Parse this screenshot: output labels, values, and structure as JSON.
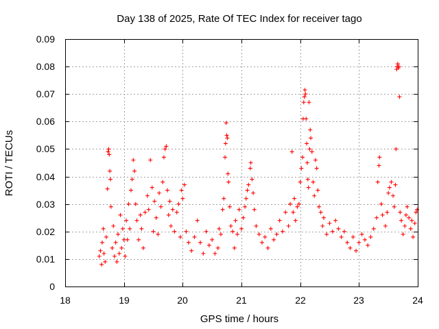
{
  "chart_data": {
    "type": "scatter",
    "title": "Day 138 of 2025, Rate Of TEC Index for receiver tago",
    "xlabel": "GPS time / hours",
    "ylabel": "ROTI / TECUs",
    "xlim": [
      18,
      24
    ],
    "ylim": [
      0,
      0.09
    ],
    "xticks": [
      18,
      19,
      20,
      21,
      22,
      23,
      24
    ],
    "yticks": [
      0,
      0.01,
      0.02,
      0.03,
      0.04,
      0.05,
      0.06,
      0.07,
      0.08,
      0.09
    ],
    "xtick_labels": [
      "18",
      "19",
      "20",
      "21",
      "22",
      "23",
      "24"
    ],
    "ytick_labels": [
      "0",
      "0.01",
      "0.02",
      "0.03",
      "0.04",
      "0.05",
      "0.06",
      "0.07",
      "0.08",
      "0.09"
    ],
    "grid": true,
    "marker": "+",
    "color": "#ff0000",
    "series": [
      {
        "name": "tago",
        "points": [
          [
            18.58,
            0.011
          ],
          [
            18.6,
            0.013
          ],
          [
            18.62,
            0.008
          ],
          [
            18.63,
            0.016
          ],
          [
            18.65,
            0.021
          ],
          [
            18.66,
            0.012
          ],
          [
            18.68,
            0.009
          ],
          [
            18.7,
            0.018
          ],
          [
            18.72,
            0.0355
          ],
          [
            18.73,
            0.049
          ],
          [
            18.74,
            0.05
          ],
          [
            18.75,
            0.048
          ],
          [
            18.76,
            0.042
          ],
          [
            18.77,
            0.039
          ],
          [
            18.78,
            0.029
          ],
          [
            18.8,
            0.014
          ],
          [
            18.82,
            0.022
          ],
          [
            18.84,
            0.011
          ],
          [
            18.86,
            0.016
          ],
          [
            18.88,
            0.009
          ],
          [
            18.9,
            0.019
          ],
          [
            18.92,
            0.012
          ],
          [
            18.94,
            0.026
          ],
          [
            18.96,
            0.014
          ],
          [
            18.98,
            0.021
          ],
          [
            19.0,
            0.017
          ],
          [
            19.02,
            0.011
          ],
          [
            19.04,
            0.024
          ],
          [
            19.06,
            0.017
          ],
          [
            19.08,
            0.03
          ],
          [
            19.1,
            0.021
          ],
          [
            19.12,
            0.035
          ],
          [
            19.14,
            0.039
          ],
          [
            19.16,
            0.046
          ],
          [
            19.18,
            0.042
          ],
          [
            19.2,
            0.03
          ],
          [
            19.22,
            0.024
          ],
          [
            19.25,
            0.017
          ],
          [
            19.28,
            0.026
          ],
          [
            19.3,
            0.021
          ],
          [
            19.33,
            0.014
          ],
          [
            19.36,
            0.027
          ],
          [
            19.4,
            0.033
          ],
          [
            19.42,
            0.028
          ],
          [
            19.45,
            0.046
          ],
          [
            19.48,
            0.036
          ],
          [
            19.5,
            0.02
          ],
          [
            19.52,
            0.031
          ],
          [
            19.55,
            0.025
          ],
          [
            19.58,
            0.019
          ],
          [
            19.6,
            0.034
          ],
          [
            19.63,
            0.029
          ],
          [
            19.66,
            0.038
          ],
          [
            19.68,
            0.047
          ],
          [
            19.7,
            0.05
          ],
          [
            19.72,
            0.051
          ],
          [
            19.74,
            0.035
          ],
          [
            19.76,
            0.026
          ],
          [
            19.78,
            0.031
          ],
          [
            19.8,
            0.022
          ],
          [
            19.83,
            0.028
          ],
          [
            19.86,
            0.02
          ],
          [
            19.9,
            0.027
          ],
          [
            19.93,
            0.03
          ],
          [
            19.96,
            0.018
          ],
          [
            19.98,
            0.035
          ],
          [
            20.0,
            0.032
          ],
          [
            20.03,
            0.037
          ],
          [
            20.06,
            0.02
          ],
          [
            20.1,
            0.016
          ],
          [
            20.15,
            0.013
          ],
          [
            20.2,
            0.018
          ],
          [
            20.25,
            0.024
          ],
          [
            20.3,
            0.016
          ],
          [
            20.35,
            0.012
          ],
          [
            20.4,
            0.02
          ],
          [
            20.45,
            0.015
          ],
          [
            20.5,
            0.017
          ],
          [
            20.55,
            0.012
          ],
          [
            20.6,
            0.014
          ],
          [
            20.62,
            0.021
          ],
          [
            20.65,
            0.019
          ],
          [
            20.68,
            0.028
          ],
          [
            20.7,
            0.032
          ],
          [
            20.72,
            0.047
          ],
          [
            20.73,
            0.052
          ],
          [
            20.74,
            0.0595
          ],
          [
            20.75,
            0.055
          ],
          [
            20.76,
            0.054
          ],
          [
            20.77,
            0.041
          ],
          [
            20.78,
            0.038
          ],
          [
            20.8,
            0.029
          ],
          [
            20.82,
            0.022
          ],
          [
            20.85,
            0.02
          ],
          [
            20.88,
            0.014
          ],
          [
            20.9,
            0.024
          ],
          [
            20.93,
            0.019
          ],
          [
            20.96,
            0.028
          ],
          [
            21.0,
            0.021
          ],
          [
            21.03,
            0.025
          ],
          [
            21.06,
            0.029
          ],
          [
            21.08,
            0.032
          ],
          [
            21.1,
            0.035
          ],
          [
            21.12,
            0.037
          ],
          [
            21.15,
            0.043
          ],
          [
            21.16,
            0.045
          ],
          [
            21.18,
            0.039
          ],
          [
            21.2,
            0.034
          ],
          [
            21.22,
            0.028
          ],
          [
            21.25,
            0.022
          ],
          [
            21.3,
            0.019
          ],
          [
            21.35,
            0.016
          ],
          [
            21.4,
            0.018
          ],
          [
            21.45,
            0.014
          ],
          [
            21.5,
            0.021
          ],
          [
            21.55,
            0.017
          ],
          [
            21.6,
            0.019
          ],
          [
            21.65,
            0.024
          ],
          [
            21.7,
            0.02
          ],
          [
            21.75,
            0.027
          ],
          [
            21.8,
            0.022
          ],
          [
            21.83,
            0.03
          ],
          [
            21.86,
            0.049
          ],
          [
            21.88,
            0.027
          ],
          [
            21.9,
            0.032
          ],
          [
            21.92,
            0.024
          ],
          [
            21.95,
            0.029
          ],
          [
            21.98,
            0.03
          ],
          [
            22.0,
            0.038
          ],
          [
            22.02,
            0.043
          ],
          [
            22.04,
            0.047
          ],
          [
            22.05,
            0.061
          ],
          [
            22.06,
            0.067
          ],
          [
            22.07,
            0.069
          ],
          [
            22.08,
            0.0715
          ],
          [
            22.09,
            0.07
          ],
          [
            22.1,
            0.061
          ],
          [
            22.11,
            0.052
          ],
          [
            22.12,
            0.045
          ],
          [
            22.13,
            0.039
          ],
          [
            22.14,
            0.036
          ],
          [
            22.15,
            0.067
          ],
          [
            22.16,
            0.05
          ],
          [
            22.17,
            0.057
          ],
          [
            22.18,
            0.054
          ],
          [
            22.2,
            0.049
          ],
          [
            22.22,
            0.038
          ],
          [
            22.24,
            0.033
          ],
          [
            22.26,
            0.046
          ],
          [
            22.28,
            0.043
          ],
          [
            22.3,
            0.035
          ],
          [
            22.32,
            0.029
          ],
          [
            22.35,
            0.027
          ],
          [
            22.38,
            0.022
          ],
          [
            22.4,
            0.025
          ],
          [
            22.45,
            0.019
          ],
          [
            22.5,
            0.023
          ],
          [
            22.55,
            0.02
          ],
          [
            22.6,
            0.024
          ],
          [
            22.65,
            0.021
          ],
          [
            22.7,
            0.018
          ],
          [
            22.75,
            0.02
          ],
          [
            22.8,
            0.016
          ],
          [
            22.85,
            0.014
          ],
          [
            22.9,
            0.018
          ],
          [
            22.95,
            0.013
          ],
          [
            23.0,
            0.016
          ],
          [
            23.05,
            0.019
          ],
          [
            23.1,
            0.017
          ],
          [
            23.15,
            0.015
          ],
          [
            23.2,
            0.018
          ],
          [
            23.25,
            0.021
          ],
          [
            23.3,
            0.025
          ],
          [
            23.32,
            0.038
          ],
          [
            23.34,
            0.044
          ],
          [
            23.35,
            0.047
          ],
          [
            23.38,
            0.03
          ],
          [
            23.4,
            0.026
          ],
          [
            23.45,
            0.022
          ],
          [
            23.48,
            0.027
          ],
          [
            23.5,
            0.034
          ],
          [
            23.52,
            0.036
          ],
          [
            23.55,
            0.038
          ],
          [
            23.58,
            0.033
          ],
          [
            23.6,
            0.029
          ],
          [
            23.62,
            0.037
          ],
          [
            23.63,
            0.05
          ],
          [
            23.64,
            0.079
          ],
          [
            23.65,
            0.08
          ],
          [
            23.66,
            0.081
          ],
          [
            23.67,
            0.0795
          ],
          [
            23.68,
            0.08
          ],
          [
            23.69,
            0.069
          ],
          [
            23.7,
            0.027
          ],
          [
            23.72,
            0.024
          ],
          [
            23.75,
            0.019
          ],
          [
            23.78,
            0.022
          ],
          [
            23.8,
            0.026
          ],
          [
            23.82,
            0.029
          ],
          [
            23.85,
            0.025
          ],
          [
            23.88,
            0.021
          ],
          [
            23.9,
            0.024
          ],
          [
            23.92,
            0.018
          ],
          [
            23.95,
            0.023
          ],
          [
            23.97,
            0.027
          ],
          [
            23.99,
            0.028
          ]
        ]
      }
    ]
  }
}
